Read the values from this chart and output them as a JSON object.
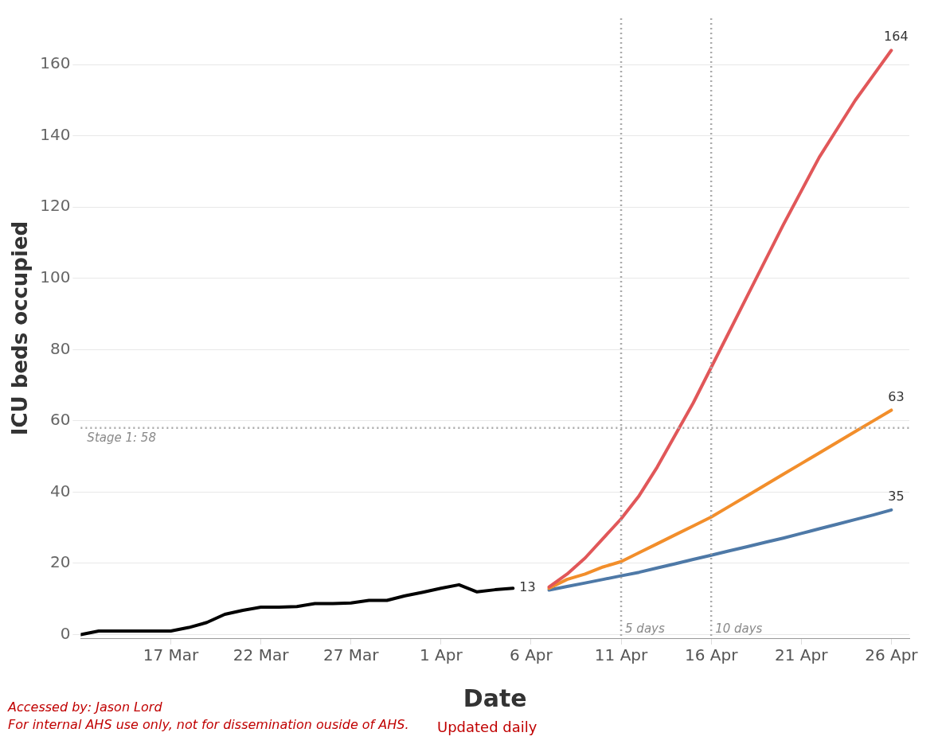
{
  "chart_data": {
    "type": "line",
    "xlabel": "Date",
    "ylabel": "ICU beds occupied",
    "xlim": [
      "--03-12",
      "--04-27"
    ],
    "ylim": [
      -1,
      173
    ],
    "xticks": [
      {
        "value": "--03-17",
        "label": "17 Mar"
      },
      {
        "value": "--03-22",
        "label": "22 Mar"
      },
      {
        "value": "--03-27",
        "label": "27 Mar"
      },
      {
        "value": "--04-01",
        "label": "1 Apr"
      },
      {
        "value": "--04-06",
        "label": "6 Apr"
      },
      {
        "value": "--04-11",
        "label": "11 Apr"
      },
      {
        "value": "--04-16",
        "label": "16 Apr"
      },
      {
        "value": "--04-21",
        "label": "21 Apr"
      },
      {
        "value": "--04-26",
        "label": "26 Apr"
      }
    ],
    "yticks": [
      0,
      20,
      40,
      60,
      80,
      100,
      120,
      140,
      160
    ],
    "grid": "y",
    "marker": "none",
    "series": [
      {
        "color": "#000000",
        "x": [
          "--03-12",
          "--03-13",
          "--03-14",
          "--03-15",
          "--03-16",
          "--03-17",
          "--03-18",
          "--03-19",
          "--03-20",
          "--03-21",
          "--03-22",
          "--03-23",
          "--03-24",
          "--03-25",
          "--03-26",
          "--03-27",
          "--03-28",
          "--03-29",
          "--03-30",
          "--03-31",
          "--04-01",
          "--04-02",
          "--04-03",
          "--04-04",
          "--04-05"
        ],
        "values": [
          0,
          1,
          1,
          1,
          1,
          1,
          2,
          3.4,
          5.7,
          6.8,
          7.7,
          7.7,
          7.9,
          8.7,
          8.7,
          8.9,
          9.6,
          9.6,
          10.9,
          11.9,
          13,
          14,
          12,
          12.6,
          13
        ]
      },
      {
        "color": "#e15759",
        "x": [
          "--04-07",
          "--04-08",
          "--04-09",
          "--04-10",
          "--04-11",
          "--04-12",
          "--04-13",
          "--04-14",
          "--04-15",
          "--04-16",
          "--04-17",
          "--04-18",
          "--04-19",
          "--04-20",
          "--04-21",
          "--04-22",
          "--04-23",
          "--04-24",
          "--04-25",
          "--04-26"
        ],
        "values": [
          13.4,
          17,
          21.5,
          27,
          32.5,
          39,
          47,
          56,
          65,
          75,
          85,
          95,
          105,
          115,
          124.5,
          134,
          142,
          150,
          157,
          164
        ]
      },
      {
        "color": "#f28e2b",
        "x": [
          "--04-07",
          "--04-08",
          "--04-09",
          "--04-10",
          "--04-11",
          "--04-12",
          "--04-13",
          "--04-14",
          "--04-15",
          "--04-16",
          "--04-17",
          "--04-18",
          "--04-19",
          "--04-20",
          "--04-21",
          "--04-22",
          "--04-23",
          "--04-24",
          "--04-25",
          "--04-26"
        ],
        "values": [
          13,
          15.5,
          17,
          19,
          20.5,
          23,
          25.5,
          28,
          30.5,
          33,
          36,
          39,
          42,
          45,
          48,
          51,
          54,
          57,
          60,
          63
        ]
      },
      {
        "color": "#4e79a7",
        "x": [
          "--04-07",
          "--04-08",
          "--04-09",
          "--04-10",
          "--04-11",
          "--04-12",
          "--04-13",
          "--04-14",
          "--04-15",
          "--04-16",
          "--04-17",
          "--04-18",
          "--04-19",
          "--04-20",
          "--04-21",
          "--04-22",
          "--04-23",
          "--04-24",
          "--04-25",
          "--04-26"
        ],
        "values": [
          12.5,
          13.5,
          14.5,
          15.5,
          16.5,
          17.5,
          18.7,
          19.9,
          21.1,
          22.3,
          23.5,
          24.7,
          25.9,
          27.1,
          28.4,
          29.7,
          31,
          32.3,
          33.6,
          35
        ]
      }
    ],
    "ref_lines": [
      {
        "axis": "y",
        "value": 58,
        "label": "Stage 1: 58",
        "line_style": "dotted"
      },
      {
        "axis": "x",
        "value": "--04-11",
        "label": "5 days",
        "line_style": "dotted"
      },
      {
        "axis": "x",
        "value": "--04-16",
        "label": "10 days",
        "line_style": "dotted"
      }
    ],
    "annotations": [
      {
        "text": "164",
        "x": "--04-26",
        "y": 164
      },
      {
        "text": "63",
        "x": "--04-26",
        "y": 63
      },
      {
        "text": "35",
        "x": "--04-26",
        "y": 35
      },
      {
        "text": "13",
        "x": "--04-05",
        "y": 13
      },
      "Accessed by: Jason Lord",
      "For internal AHS use only, not for dissemination ouside of AHS.",
      "Updated daily"
    ]
  }
}
